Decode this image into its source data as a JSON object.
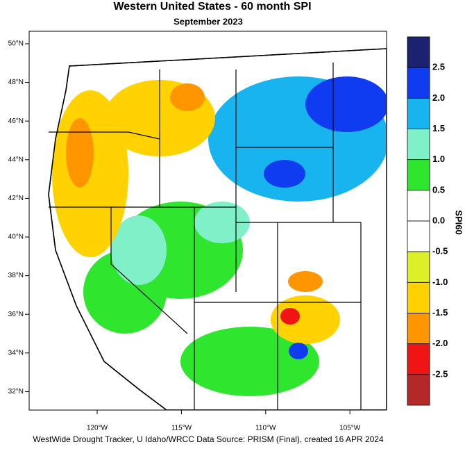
{
  "title": "Western United States - 60 month SPI",
  "subtitle": "September 2023",
  "latitudes": [
    "50°N",
    "48°N",
    "46°N",
    "44°N",
    "42°N",
    "40°N",
    "38°N",
    "36°N",
    "34°N",
    "32°N"
  ],
  "longitudes": [
    "120°W",
    "115°W",
    "110°W",
    "105°W"
  ],
  "colorbar": {
    "title": "SPI60",
    "labels": [
      "2.5",
      "2.0",
      "1.5",
      "1.0",
      "0.5",
      "0.0",
      "-0.5",
      "-1.0",
      "-1.5",
      "-2.0",
      "-2.5"
    ],
    "colors": [
      "#1c2270",
      "#0f3cf0",
      "#18b4f0",
      "#80f0c8",
      "#2ee62e",
      "#ffffff",
      "#ffffff",
      "#dcf028",
      "#ffd200",
      "#ff9600",
      "#f01414",
      "#b42828"
    ]
  },
  "credit": "WestWide Drought Tracker, U Idaho/WRCC Data Source: PRISM (Final), created 16 APR 2024"
}
